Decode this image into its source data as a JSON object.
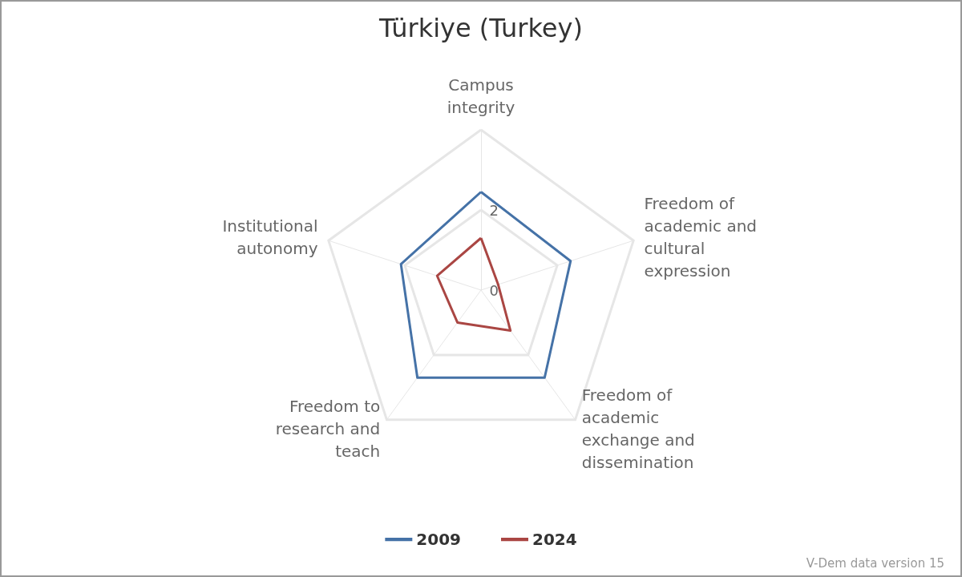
{
  "chart_data": {
    "type": "radar",
    "title": "Türkiye (Turkey)",
    "categories": [
      "Campus integrity",
      "Freedom of academic and cultural expression",
      "Freedom of academic exchange and dissemination",
      "Freedom to research and teach",
      "Institutional autonomy"
    ],
    "series": [
      {
        "name": "2009",
        "color": "#4572a7",
        "values": [
          2.45,
          2.35,
          2.7,
          2.7,
          2.1
        ]
      },
      {
        "name": "2024",
        "color": "#aa4643",
        "values": [
          1.3,
          0.45,
          1.25,
          1.0,
          1.15
        ]
      }
    ],
    "ylim": [
      0,
      4
    ],
    "yticks": [
      0,
      2
    ],
    "grid": true,
    "legend": "bottom",
    "marker": "none",
    "line_style": "solid",
    "annotations": [
      "V-Dem data version 15"
    ]
  }
}
